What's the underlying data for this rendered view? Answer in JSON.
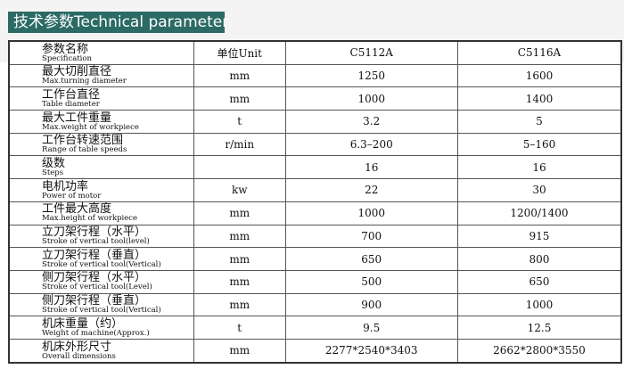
{
  "title": "技术参数Technical parameter",
  "header": {
    "spec_zh": "参数名称",
    "spec_en": "Specification",
    "unit": "单位Unit",
    "model1": "C5112A",
    "model2": "C5116A"
  },
  "rows": [
    {
      "zh": "最大切削直径",
      "en": "Max.turning diameter",
      "unit": "mm",
      "v1": "1250",
      "v2": "1600"
    },
    {
      "zh": "工作台直径",
      "en": "Table diameter",
      "unit": "mm",
      "v1": "1000",
      "v2": "1400"
    },
    {
      "zh": "最大工件重量",
      "en": "Max.weight of workpiece",
      "unit": "t",
      "v1": "3.2",
      "v2": "5"
    },
    {
      "zh": "工作台转速范围",
      "en": "Range of table speeds",
      "unit": "r/min",
      "v1": "6.3–200",
      "v2": "5–160"
    },
    {
      "zh": "级数",
      "en": "Steps",
      "unit": "",
      "v1": "16",
      "v2": "16"
    },
    {
      "zh": "电机功率",
      "en": "Power of motor",
      "unit": "kw",
      "v1": "22",
      "v2": "30"
    },
    {
      "zh": "工件最大高度",
      "en": "Max.height of workpiece",
      "unit": "mm",
      "v1": "1000",
      "v2": "1200/1400"
    },
    {
      "zh": "立刀架行程（水平）",
      "en": "Stroke of vertical tool(level)",
      "unit": "mm",
      "v1": "700",
      "v2": "915"
    },
    {
      "zh": "立刀架行程（垂直）",
      "en": "Stroke of vertical tool(Vertical)",
      "unit": "mm",
      "v1": "650",
      "v2": "800"
    },
    {
      "zh": "侧刀架行程（水平）",
      "en": "Stroke of vertical tool(Level)",
      "unit": "mm",
      "v1": "500",
      "v2": "650"
    },
    {
      "zh": "侧刀架行程（垂直）",
      "en": "Stroke of vertical tool(Vertical)",
      "unit": "mm",
      "v1": "900",
      "v2": "1000"
    },
    {
      "zh": "机床重量（约）",
      "en": "Weight of machine(Approx.)",
      "unit": "t",
      "v1": "9.5",
      "v2": "12.5"
    },
    {
      "zh": "机床外形尺寸",
      "en": "Overall dimensions",
      "unit": "mm",
      "v1": "2277*2540*3403",
      "v2": "2662*2800*3550"
    }
  ]
}
